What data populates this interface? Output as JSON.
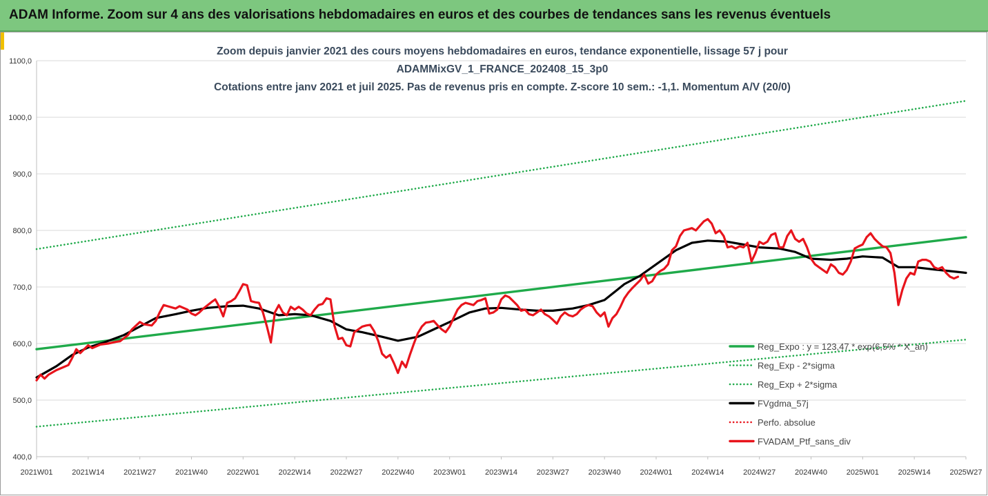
{
  "banner": {
    "title": "ADAM Informe. Zoom sur 4 ans des valorisations hebdomadaires en euros et des courbes de tendances sans les revenus éventuels"
  },
  "chart_data": {
    "type": "line",
    "title_lines": [
      "Zoom depuis janvier 2021 des cours moyens hebdomadaires  en euros, tendance exponentielle, lissage 57 j pour",
      "ADAMMixGV_1_FRANCE_202408_15_3p0",
      "Cotations entre janv 2021 et juil 2025. Pas de revenus pris en compte. Z-score 10 sem.: -1,1. Momentum A/V (20/0)"
    ],
    "x_tick_labels": [
      "2021W01",
      "2021W14",
      "2021W27",
      "2021W40",
      "2022W01",
      "2022W14",
      "2022W27",
      "2022W40",
      "2023W01",
      "2023W14",
      "2023W27",
      "2023W40",
      "2024W01",
      "2024W14",
      "2024W27",
      "2024W40",
      "2025W01",
      "2025W14",
      "2025W27"
    ],
    "y_tick_labels": [
      "400,0",
      "500,0",
      "600,0",
      "700,0",
      "800,0",
      "900,0",
      "1000,0",
      "1100,0"
    ],
    "ylim": [
      400,
      1100
    ],
    "grid": "horizontal",
    "legend_position": "right",
    "colors": {
      "trend": "#1faa4a",
      "smooth": "#000000",
      "portfolio": "#e8141c"
    },
    "series": [
      {
        "name": "Reg_Expo : y = 123,47 * exp(6,5% * X_an)",
        "style": "solid",
        "color": "#1faa4a",
        "points": [
          [
            0,
            590
          ],
          [
            234,
            788
          ]
        ]
      },
      {
        "name": "Reg_Exp - 2*sigma",
        "style": "dotted",
        "color": "#1faa4a",
        "points": [
          [
            0,
            453
          ],
          [
            234,
            607
          ]
        ]
      },
      {
        "name": "Reg_Exp + 2*sigma",
        "style": "dotted",
        "color": "#1faa4a",
        "points": [
          [
            0,
            767
          ],
          [
            234,
            1029
          ]
        ]
      },
      {
        "name": "FVgdma_57j",
        "style": "solid",
        "color": "#000000",
        "points": [
          [
            0,
            540
          ],
          [
            5,
            560
          ],
          [
            9,
            580
          ],
          [
            13,
            593
          ],
          [
            17,
            602
          ],
          [
            22,
            615
          ],
          [
            26,
            630
          ],
          [
            30,
            645
          ],
          [
            35,
            652
          ],
          [
            39,
            658
          ],
          [
            43,
            663
          ],
          [
            48,
            666
          ],
          [
            52,
            667
          ],
          [
            56,
            662
          ],
          [
            61,
            650
          ],
          [
            65,
            652
          ],
          [
            69,
            650
          ],
          [
            74,
            640
          ],
          [
            78,
            625
          ],
          [
            82,
            620
          ],
          [
            87,
            612
          ],
          [
            91,
            605
          ],
          [
            96,
            612
          ],
          [
            100,
            625
          ],
          [
            104,
            638
          ],
          [
            109,
            655
          ],
          [
            113,
            662
          ],
          [
            117,
            663
          ],
          [
            122,
            660
          ],
          [
            126,
            658
          ],
          [
            130,
            658
          ],
          [
            135,
            662
          ],
          [
            139,
            668
          ],
          [
            143,
            677
          ],
          [
            148,
            705
          ],
          [
            152,
            720
          ],
          [
            156,
            740
          ],
          [
            161,
            765
          ],
          [
            165,
            778
          ],
          [
            169,
            782
          ],
          [
            174,
            780
          ],
          [
            178,
            775
          ],
          [
            182,
            770
          ],
          [
            187,
            768
          ],
          [
            191,
            762
          ],
          [
            195,
            750
          ],
          [
            200,
            748
          ],
          [
            204,
            750
          ],
          [
            208,
            754
          ],
          [
            213,
            752
          ],
          [
            217,
            735
          ],
          [
            221,
            735
          ],
          [
            226,
            731
          ],
          [
            230,
            728
          ],
          [
            234,
            725
          ]
        ]
      },
      {
        "name": "Perfo. absolue",
        "style": "dotted",
        "color": "#e8141c",
        "points": []
      },
      {
        "name": "FVADAM_Ptf_sans_div",
        "style": "solid",
        "color": "#e8141c",
        "points": [
          [
            0,
            535
          ],
          [
            1,
            545
          ],
          [
            2,
            538
          ],
          [
            3,
            545
          ],
          [
            5,
            553
          ],
          [
            6,
            556
          ],
          [
            8,
            562
          ],
          [
            9,
            575
          ],
          [
            10,
            590
          ],
          [
            11,
            583
          ],
          [
            13,
            597
          ],
          [
            14,
            592
          ],
          [
            16,
            598
          ],
          [
            18,
            600
          ],
          [
            20,
            603
          ],
          [
            21,
            604
          ],
          [
            23,
            615
          ],
          [
            24,
            625
          ],
          [
            26,
            638
          ],
          [
            27,
            634
          ],
          [
            29,
            632
          ],
          [
            30,
            640
          ],
          [
            31,
            655
          ],
          [
            32,
            668
          ],
          [
            33,
            666
          ],
          [
            35,
            662
          ],
          [
            36,
            666
          ],
          [
            38,
            660
          ],
          [
            39,
            653
          ],
          [
            40,
            650
          ],
          [
            41,
            655
          ],
          [
            42,
            662
          ],
          [
            44,
            673
          ],
          [
            45,
            678
          ],
          [
            46,
            665
          ],
          [
            47,
            648
          ],
          [
            48,
            672
          ],
          [
            49,
            675
          ],
          [
            50,
            680
          ],
          [
            51,
            692
          ],
          [
            52,
            705
          ],
          [
            53,
            703
          ],
          [
            54,
            675
          ],
          [
            55,
            673
          ],
          [
            56,
            672
          ],
          [
            57,
            655
          ],
          [
            58,
            630
          ],
          [
            59,
            602
          ],
          [
            60,
            655
          ],
          [
            61,
            668
          ],
          [
            62,
            655
          ],
          [
            63,
            650
          ],
          [
            64,
            665
          ],
          [
            65,
            660
          ],
          [
            66,
            665
          ],
          [
            67,
            660
          ],
          [
            68,
            653
          ],
          [
            69,
            650
          ],
          [
            70,
            660
          ],
          [
            71,
            668
          ],
          [
            72,
            670
          ],
          [
            73,
            680
          ],
          [
            74,
            678
          ],
          [
            75,
            632
          ],
          [
            76,
            608
          ],
          [
            77,
            610
          ],
          [
            78,
            597
          ],
          [
            79,
            595
          ],
          [
            80,
            620
          ],
          [
            81,
            625
          ],
          [
            82,
            630
          ],
          [
            83,
            632
          ],
          [
            84,
            633
          ],
          [
            85,
            622
          ],
          [
            86,
            605
          ],
          [
            87,
            582
          ],
          [
            88,
            575
          ],
          [
            89,
            580
          ],
          [
            90,
            565
          ],
          [
            91,
            548
          ],
          [
            92,
            568
          ],
          [
            93,
            558
          ],
          [
            94,
            580
          ],
          [
            95,
            600
          ],
          [
            96,
            618
          ],
          [
            97,
            630
          ],
          [
            98,
            637
          ],
          [
            99,
            638
          ],
          [
            100,
            640
          ],
          [
            101,
            632
          ],
          [
            102,
            625
          ],
          [
            103,
            620
          ],
          [
            104,
            630
          ],
          [
            105,
            645
          ],
          [
            106,
            660
          ],
          [
            107,
            668
          ],
          [
            108,
            672
          ],
          [
            109,
            670
          ],
          [
            110,
            668
          ],
          [
            111,
            675
          ],
          [
            112,
            677
          ],
          [
            113,
            680
          ],
          [
            114,
            653
          ],
          [
            115,
            655
          ],
          [
            116,
            660
          ],
          [
            117,
            678
          ],
          [
            118,
            685
          ],
          [
            119,
            682
          ],
          [
            120,
            675
          ],
          [
            121,
            668
          ],
          [
            122,
            658
          ],
          [
            123,
            660
          ],
          [
            124,
            652
          ],
          [
            125,
            650
          ],
          [
            126,
            655
          ],
          [
            127,
            660
          ],
          [
            128,
            652
          ],
          [
            129,
            648
          ],
          [
            130,
            642
          ],
          [
            131,
            635
          ],
          [
            132,
            648
          ],
          [
            133,
            655
          ],
          [
            134,
            650
          ],
          [
            135,
            648
          ],
          [
            136,
            652
          ],
          [
            137,
            660
          ],
          [
            138,
            665
          ],
          [
            139,
            668
          ],
          [
            140,
            666
          ],
          [
            141,
            655
          ],
          [
            142,
            648
          ],
          [
            143,
            655
          ],
          [
            144,
            630
          ],
          [
            145,
            645
          ],
          [
            146,
            652
          ],
          [
            147,
            665
          ],
          [
            148,
            680
          ],
          [
            149,
            690
          ],
          [
            150,
            698
          ],
          [
            151,
            705
          ],
          [
            152,
            712
          ],
          [
            153,
            722
          ],
          [
            154,
            706
          ],
          [
            155,
            710
          ],
          [
            156,
            722
          ],
          [
            157,
            728
          ],
          [
            158,
            732
          ],
          [
            159,
            740
          ],
          [
            160,
            765
          ],
          [
            161,
            772
          ],
          [
            162,
            790
          ],
          [
            163,
            800
          ],
          [
            164,
            802
          ],
          [
            165,
            804
          ],
          [
            166,
            800
          ],
          [
            167,
            808
          ],
          [
            168,
            816
          ],
          [
            169,
            820
          ],
          [
            170,
            812
          ],
          [
            171,
            795
          ],
          [
            172,
            800
          ],
          [
            173,
            790
          ],
          [
            174,
            770
          ],
          [
            175,
            772
          ],
          [
            176,
            768
          ],
          [
            177,
            772
          ],
          [
            178,
            770
          ],
          [
            179,
            778
          ],
          [
            180,
            745
          ],
          [
            181,
            760
          ],
          [
            182,
            780
          ],
          [
            183,
            776
          ],
          [
            184,
            780
          ],
          [
            185,
            792
          ],
          [
            186,
            795
          ],
          [
            187,
            770
          ],
          [
            188,
            770
          ],
          [
            189,
            790
          ],
          [
            190,
            800
          ],
          [
            191,
            785
          ],
          [
            192,
            780
          ],
          [
            193,
            785
          ],
          [
            194,
            770
          ],
          [
            195,
            750
          ],
          [
            196,
            740
          ],
          [
            197,
            735
          ],
          [
            198,
            730
          ],
          [
            199,
            725
          ],
          [
            200,
            740
          ],
          [
            201,
            735
          ],
          [
            202,
            725
          ],
          [
            203,
            722
          ],
          [
            204,
            730
          ],
          [
            205,
            745
          ],
          [
            206,
            768
          ],
          [
            207,
            772
          ],
          [
            208,
            775
          ],
          [
            209,
            788
          ],
          [
            210,
            795
          ],
          [
            211,
            785
          ],
          [
            212,
            778
          ],
          [
            213,
            772
          ],
          [
            214,
            770
          ],
          [
            215,
            760
          ],
          [
            216,
            725
          ],
          [
            217,
            668
          ],
          [
            218,
            695
          ],
          [
            219,
            715
          ],
          [
            220,
            725
          ],
          [
            221,
            722
          ],
          [
            222,
            745
          ],
          [
            223,
            748
          ],
          [
            224,
            748
          ],
          [
            225,
            745
          ],
          [
            226,
            735
          ],
          [
            227,
            732
          ],
          [
            228,
            735
          ],
          [
            229,
            725
          ],
          [
            230,
            718
          ],
          [
            231,
            715
          ],
          [
            232,
            718
          ]
        ]
      }
    ]
  }
}
